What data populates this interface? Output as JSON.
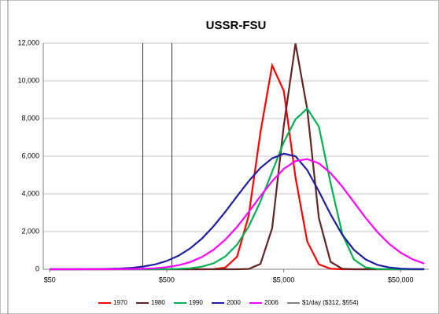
{
  "chart_data": {
    "type": "line",
    "title": "USSR-FSU",
    "log_x": true,
    "grid": true,
    "x": [
      50,
      63,
      79,
      100,
      126,
      158,
      200,
      251,
      316,
      398,
      501,
      631,
      794,
      1000,
      1259,
      1585,
      1995,
      2512,
      3162,
      3981,
      5012,
      6310,
      7943,
      10000,
      12589,
      15849,
      19953,
      25119,
      31623,
      39811,
      50119,
      63096,
      79433
    ],
    "series": [
      {
        "name": "1970",
        "color": "#ff0000",
        "values": [
          0,
          0,
          0,
          0,
          0,
          0,
          0,
          0,
          0,
          0,
          0,
          0,
          0,
          0,
          7,
          90,
          662,
          2850,
          7260,
          10820,
          9470,
          4870,
          1470,
          260,
          27,
          2,
          0,
          0,
          0,
          0,
          0,
          0,
          0
        ]
      },
      {
        "name": "1980",
        "color": "#632523",
        "values": [
          0,
          0,
          0,
          0,
          0,
          0,
          0,
          0,
          0,
          0,
          0,
          0,
          0,
          0,
          0,
          0,
          0,
          16,
          279,
          2170,
          7610,
          11980,
          8500,
          2720,
          392,
          25,
          0,
          0,
          0,
          0,
          0,
          0,
          0
        ]
      },
      {
        "name": "1990",
        "color": "#00b050",
        "values": [
          0,
          0,
          0,
          0,
          0,
          0,
          0,
          0,
          0,
          2,
          6,
          19,
          53,
          136,
          318,
          675,
          1303,
          2266,
          3596,
          5170,
          6740,
          7960,
          8530,
          7570,
          4570,
          1869,
          515,
          97,
          12,
          1,
          0,
          0,
          0
        ]
      },
      {
        "name": "2000",
        "color": "#1f1fa0",
        "values": [
          0,
          1,
          2,
          4,
          8,
          19,
          39,
          76,
          145,
          258,
          443,
          718,
          1110,
          1628,
          2286,
          3052,
          3873,
          4677,
          5380,
          5887,
          6134,
          5999,
          5265,
          4139,
          2911,
          1830,
          1031,
          520,
          234,
          94,
          34,
          11,
          3
        ]
      },
      {
        "name": "2006",
        "color": "#ff00ff",
        "values": [
          0,
          0,
          0,
          0,
          1,
          2,
          5,
          12,
          26,
          56,
          113,
          214,
          382,
          648,
          1037,
          1573,
          2248,
          3036,
          3879,
          4677,
          5331,
          5742,
          5844,
          5621,
          5107,
          4382,
          3555,
          2725,
          1975,
          1351,
          875,
          531,
          306
        ]
      }
    ],
    "vlines": {
      "name": "$1/day ($312, $554)",
      "color": "#808080",
      "values": [
        312,
        554
      ]
    },
    "xlim": [
      44,
      87000
    ],
    "xticks": [
      {
        "value": 50,
        "label": "$50"
      },
      {
        "value": 500,
        "label": "$500"
      },
      {
        "value": 5000,
        "label": "$5,000"
      },
      {
        "value": 50000,
        "label": "$50,000"
      }
    ],
    "ylim": [
      0,
      12000
    ],
    "yticks": [
      0,
      {
        "value": 2000,
        "label": "2,000"
      },
      {
        "value": 4000,
        "label": "4,000"
      },
      {
        "value": 6000,
        "label": "6,000"
      },
      {
        "value": 8000,
        "label": "8,000"
      },
      {
        "value": 10000,
        "label": "10,000"
      },
      {
        "value": 12000,
        "label": "12,000"
      }
    ]
  }
}
